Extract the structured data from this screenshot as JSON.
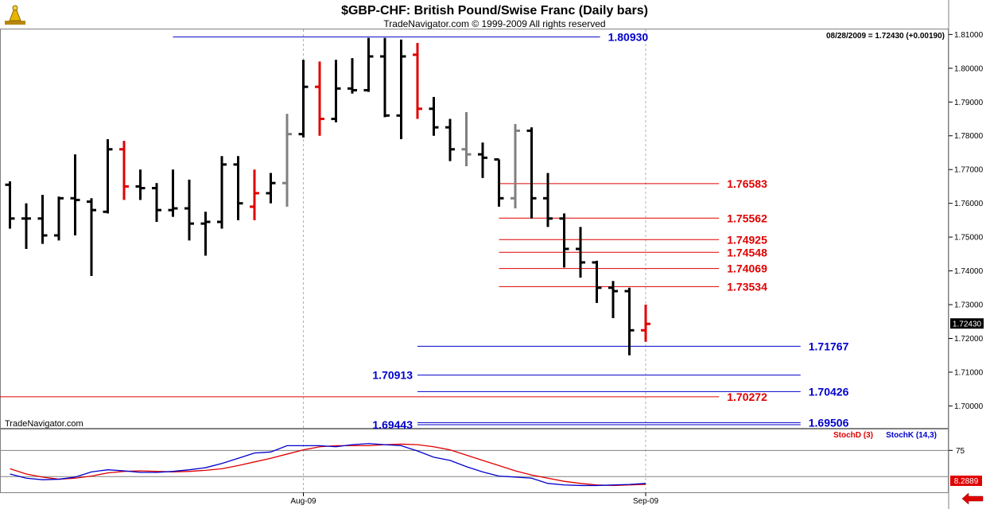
{
  "chart_data": {
    "type": "ohlc",
    "title": "$GBP-CHF:  British Pound/Swise Franc  (Daily bars)",
    "subtitle": "TradeNavigator.com © 1999-2009 All rights reserved",
    "watermark": "TradeNavigator.com",
    "readout": "08/28/2009 = 1.72430 (+0.00190)",
    "last_price_label": "1.72430",
    "ylim": [
      1.6935,
      1.8115
    ],
    "y_ticks": [
      1.7,
      1.71,
      1.72,
      1.73,
      1.74,
      1.75,
      1.76,
      1.77,
      1.78,
      1.79,
      1.8,
      1.81
    ],
    "y_tick_labels": [
      "1.70000",
      "1.71000",
      "1.72000",
      "1.73000",
      "1.74000",
      "1.75000",
      "1.76000",
      "1.77000",
      "1.78000",
      "1.79000",
      "1.80000",
      "1.81000"
    ],
    "x_labels": [
      {
        "label": "Aug-09",
        "bar": 18
      },
      {
        "label": "Sep-09",
        "bar": 39
      }
    ],
    "bars": [
      {
        "o": 1.7655,
        "h": 1.7665,
        "l": 1.7525,
        "c": 1.7555,
        "color": "#000000"
      },
      {
        "o": 1.7555,
        "h": 1.76,
        "l": 1.7465,
        "c": 1.7555,
        "color": "#000000"
      },
      {
        "o": 1.7555,
        "h": 1.7625,
        "l": 1.748,
        "c": 1.7505,
        "color": "#000000"
      },
      {
        "o": 1.7505,
        "h": 1.762,
        "l": 1.749,
        "c": 1.7615,
        "color": "#000000"
      },
      {
        "o": 1.7615,
        "h": 1.7745,
        "l": 1.7505,
        "c": 1.761,
        "color": "#000000"
      },
      {
        "o": 1.7605,
        "h": 1.7615,
        "l": 1.7385,
        "c": 1.758,
        "color": "#000000"
      },
      {
        "o": 1.7575,
        "h": 1.779,
        "l": 1.757,
        "c": 1.776,
        "color": "#000000"
      },
      {
        "o": 1.776,
        "h": 1.7785,
        "l": 1.761,
        "c": 1.765,
        "color": "#e00000"
      },
      {
        "o": 1.765,
        "h": 1.77,
        "l": 1.761,
        "c": 1.7645,
        "color": "#000000"
      },
      {
        "o": 1.7645,
        "h": 1.766,
        "l": 1.7545,
        "c": 1.758,
        "color": "#000000"
      },
      {
        "o": 1.758,
        "h": 1.77,
        "l": 1.756,
        "c": 1.7585,
        "color": "#000000"
      },
      {
        "o": 1.7585,
        "h": 1.767,
        "l": 1.749,
        "c": 1.754,
        "color": "#000000"
      },
      {
        "o": 1.754,
        "h": 1.7575,
        "l": 1.7445,
        "c": 1.7545,
        "color": "#000000"
      },
      {
        "o": 1.7545,
        "h": 1.774,
        "l": 1.7525,
        "c": 1.7715,
        "color": "#000000"
      },
      {
        "o": 1.7715,
        "h": 1.774,
        "l": 1.755,
        "c": 1.76,
        "color": "#000000"
      },
      {
        "o": 1.759,
        "h": 1.77,
        "l": 1.755,
        "c": 1.763,
        "color": "#e00000"
      },
      {
        "o": 1.763,
        "h": 1.769,
        "l": 1.76,
        "c": 1.766,
        "color": "#000000"
      },
      {
        "o": 1.766,
        "h": 1.7865,
        "l": 1.759,
        "c": 1.7805,
        "color": "#808080"
      },
      {
        "o": 1.7805,
        "h": 1.8025,
        "l": 1.7795,
        "c": 1.7945,
        "color": "#000000"
      },
      {
        "o": 1.7945,
        "h": 1.802,
        "l": 1.78,
        "c": 1.785,
        "color": "#e00000"
      },
      {
        "o": 1.785,
        "h": 1.8025,
        "l": 1.784,
        "c": 1.794,
        "color": "#000000"
      },
      {
        "o": 1.794,
        "h": 1.803,
        "l": 1.7925,
        "c": 1.7935,
        "color": "#000000"
      },
      {
        "o": 1.7935,
        "h": 1.809,
        "l": 1.793,
        "c": 1.8035,
        "color": "#000000"
      },
      {
        "o": 1.8035,
        "h": 1.809,
        "l": 1.7855,
        "c": 1.786,
        "color": "#000000"
      },
      {
        "o": 1.786,
        "h": 1.8085,
        "l": 1.779,
        "c": 1.8035,
        "color": "#000000"
      },
      {
        "o": 1.804,
        "h": 1.8075,
        "l": 1.785,
        "c": 1.788,
        "color": "#e00000"
      },
      {
        "o": 1.788,
        "h": 1.7915,
        "l": 1.78,
        "c": 1.7825,
        "color": "#000000"
      },
      {
        "o": 1.7825,
        "h": 1.785,
        "l": 1.7725,
        "c": 1.776,
        "color": "#000000"
      },
      {
        "o": 1.776,
        "h": 1.787,
        "l": 1.771,
        "c": 1.7745,
        "color": "#808080"
      },
      {
        "o": 1.7745,
        "h": 1.778,
        "l": 1.7675,
        "c": 1.7735,
        "color": "#000000"
      },
      {
        "o": 1.773,
        "h": 1.773,
        "l": 1.759,
        "c": 1.7615,
        "color": "#000000"
      },
      {
        "o": 1.7615,
        "h": 1.7835,
        "l": 1.7585,
        "c": 1.7815,
        "color": "#808080"
      },
      {
        "o": 1.7815,
        "h": 1.7825,
        "l": 1.7555,
        "c": 1.7615,
        "color": "#000000"
      },
      {
        "o": 1.7615,
        "h": 1.769,
        "l": 1.753,
        "c": 1.7555,
        "color": "#000000"
      },
      {
        "o": 1.7555,
        "h": 1.757,
        "l": 1.741,
        "c": 1.7465,
        "color": "#000000"
      },
      {
        "o": 1.7465,
        "h": 1.753,
        "l": 1.738,
        "c": 1.7425,
        "color": "#000000"
      },
      {
        "o": 1.7425,
        "h": 1.743,
        "l": 1.7305,
        "c": 1.735,
        "color": "#000000"
      },
      {
        "o": 1.735,
        "h": 1.737,
        "l": 1.726,
        "c": 1.734,
        "color": "#000000"
      },
      {
        "o": 1.734,
        "h": 1.735,
        "l": 1.715,
        "c": 1.7224,
        "color": "#000000"
      },
      {
        "o": 1.7224,
        "h": 1.73,
        "l": 1.719,
        "c": 1.7243,
        "color": "#e00000"
      }
    ],
    "levels": [
      {
        "value": 1.8093,
        "label": "1.80930",
        "color": "#0000cc",
        "x_start_bar": 10,
        "x_end_bar": 36.2,
        "label_side": "right"
      },
      {
        "value": 1.76583,
        "label": "1.76583",
        "color": "#e00000",
        "x_start_bar": 30,
        "x_end_bar": 43.5,
        "label_side": "right"
      },
      {
        "value": 1.75562,
        "label": "1.75562",
        "color": "#e00000",
        "x_start_bar": 30,
        "x_end_bar": 43.5,
        "label_side": "right"
      },
      {
        "value": 1.74925,
        "label": "1.74925",
        "color": "#e00000",
        "x_start_bar": 30,
        "x_end_bar": 43.5,
        "label_side": "right"
      },
      {
        "value": 1.74548,
        "label": "1.74548",
        "color": "#e00000",
        "x_start_bar": 30,
        "x_end_bar": 43.5,
        "label_side": "right"
      },
      {
        "value": 1.74069,
        "label": "1.74069",
        "color": "#e00000",
        "x_start_bar": 30,
        "x_end_bar": 43.5,
        "label_side": "right"
      },
      {
        "value": 1.73534,
        "label": "1.73534",
        "color": "#e00000",
        "x_start_bar": 30,
        "x_end_bar": 43.5,
        "label_side": "right"
      },
      {
        "value": 1.71767,
        "label": "1.71767",
        "color": "#0000cc",
        "x_start_bar": 25,
        "x_end_bar": 48.5,
        "label_side": "right"
      },
      {
        "value": 1.70913,
        "label": "1.70913",
        "color": "#0000cc",
        "x_start_bar": 25,
        "x_end_bar": 48.5,
        "label_side": "left"
      },
      {
        "value": 1.70426,
        "label": "1.70426",
        "color": "#0000cc",
        "x_start_bar": 25,
        "x_end_bar": 48.5,
        "label_side": "right"
      },
      {
        "value": 1.70272,
        "label": "1.70272",
        "color": "#e00000",
        "x_start_bar": -1,
        "x_end_bar": 43.5,
        "label_side": "right"
      },
      {
        "value": 1.69506,
        "label": "1.69506",
        "color": "#0000cc",
        "x_start_bar": 25,
        "x_end_bar": 48.5,
        "label_side": "right"
      },
      {
        "value": 1.69443,
        "label": "1.69443",
        "color": "#0000cc",
        "x_start_bar": 25,
        "x_end_bar": 48.5,
        "label_side": "left"
      }
    ],
    "stochastic": {
      "ylim": [
        -5,
        115
      ],
      "y_ticks": [
        75
      ],
      "y_tick_labels": [
        "75"
      ],
      "last_value_label": "8.2889",
      "series": [
        {
          "name": "StochD (3)",
          "color": "#e00000",
          "values": [
            40,
            30,
            24,
            20,
            22,
            26,
            32,
            35,
            36,
            35,
            34,
            35,
            37,
            40,
            46,
            53,
            60,
            68,
            76,
            82,
            84,
            84,
            84,
            86,
            87,
            86,
            82,
            76,
            66,
            56,
            46,
            36,
            28,
            22,
            16,
            12,
            9,
            8,
            9,
            10
          ]
        },
        {
          "name": "StochK (14,3)",
          "color": "#0000cc",
          "values": [
            30,
            22,
            19,
            20,
            24,
            34,
            38,
            36,
            33,
            33,
            35,
            38,
            42,
            50,
            60,
            70,
            72,
            84,
            84,
            84,
            82,
            86,
            88,
            86,
            84,
            74,
            62,
            56,
            44,
            34,
            26,
            24,
            22,
            12,
            9,
            8,
            8,
            9,
            10,
            12
          ]
        }
      ]
    }
  }
}
